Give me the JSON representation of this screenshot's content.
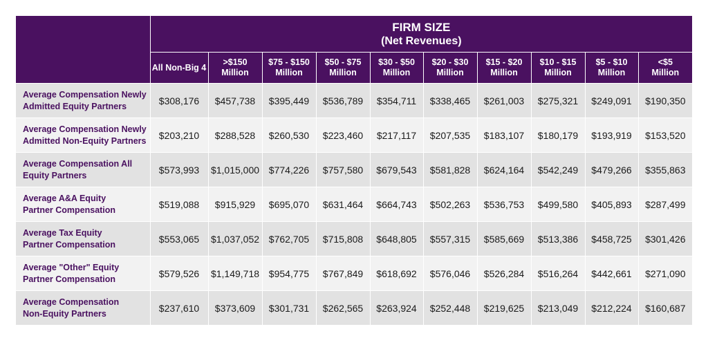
{
  "chart_data": {
    "type": "table",
    "title": "FIRM SIZE",
    "subtitle": "(Net Revenues)",
    "columns": [
      {
        "line1": "All Non-Big 4",
        "line2": ""
      },
      {
        "line1": ">$150",
        "line2": "Million"
      },
      {
        "line1": "$75 - $150",
        "line2": "Million"
      },
      {
        "line1": "$50 - $75",
        "line2": "Million"
      },
      {
        "line1": "$30 - $50",
        "line2": "Million"
      },
      {
        "line1": "$20 - $30",
        "line2": "Million"
      },
      {
        "line1": "$15 - $20",
        "line2": "Million"
      },
      {
        "line1": "$10 - $15",
        "line2": "Million"
      },
      {
        "line1": "$5 - $10",
        "line2": "Million"
      },
      {
        "line1": "<$5",
        "line2": "Million"
      }
    ],
    "rows": [
      {
        "line1": "Average Compensation Newly",
        "line2": "Admitted Equity Partners",
        "values": [
          "$308,176",
          "$457,738",
          "$395,449",
          "$536,789",
          "$354,711",
          "$338,465",
          "$261,003",
          "$275,321",
          "$249,091",
          "$190,350"
        ]
      },
      {
        "line1": "Average Compensation Newly",
        "line2": "Admitted Non-Equity Partners",
        "values": [
          "$203,210",
          "$288,528",
          "$260,530",
          "$223,460",
          "$217,117",
          "$207,535",
          "$183,107",
          "$180,179",
          "$193,919",
          "$153,520"
        ]
      },
      {
        "line1": "Average Compensation All",
        "line2": "Equity Partners",
        "values": [
          "$573,993",
          "$1,015,000",
          "$774,226",
          "$757,580",
          "$679,543",
          "$581,828",
          "$624,164",
          "$542,249",
          "$479,266",
          "$355,863"
        ]
      },
      {
        "line1": "Average A&A Equity",
        "line2": "Partner Compensation",
        "values": [
          "$519,088",
          "$915,929",
          "$695,070",
          "$631,464",
          "$664,743",
          "$502,263",
          "$536,753",
          "$499,580",
          "$405,893",
          "$287,499"
        ]
      },
      {
        "line1": "Average Tax Equity",
        "line2": "Partner Compensation",
        "values": [
          "$553,065",
          "$1,037,052",
          "$762,705",
          "$715,808",
          "$648,805",
          "$557,315",
          "$585,669",
          "$513,386",
          "$458,725",
          "$301,426"
        ]
      },
      {
        "line1": "Average \"Other\" Equity",
        "line2": "Partner Compensation",
        "values": [
          "$579,526",
          "$1,149,718",
          "$954,775",
          "$767,849",
          "$618,692",
          "$576,046",
          "$526,284",
          "$516,264",
          "$442,661",
          "$271,090"
        ]
      },
      {
        "line1": "Average Compensation",
        "line2": "Non-Equity Partners",
        "values": [
          "$237,610",
          "$373,609",
          "$301,731",
          "$262,565",
          "$263,924",
          "$252,448",
          "$219,625",
          "$213,049",
          "$212,224",
          "$160,687"
        ]
      }
    ],
    "colors": {
      "header_bg": "#4a1160",
      "label_text": "#4a1160",
      "band_dark": "#e2e2e2",
      "band_light": "#f2f2f2"
    }
  }
}
